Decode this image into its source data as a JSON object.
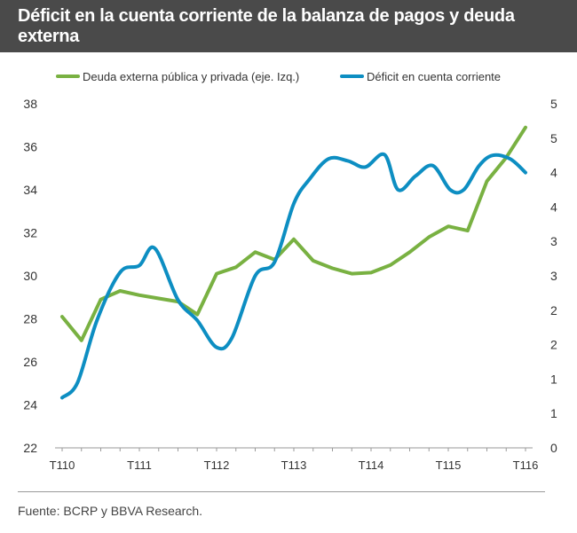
{
  "header": {
    "title": "Déficit en la cuenta corriente de la balanza de pagos y deuda externa"
  },
  "footer": {
    "source": "Fuente: BCRP y BBVA Research."
  },
  "colors": {
    "header_bg": "#4a4a4a",
    "debt": "#79b142",
    "deficit": "#0d8ec2",
    "axis": "#9a9a9a",
    "text": "#333333"
  },
  "chart_data": {
    "type": "line",
    "title": "Déficit en la cuenta corriente de la balanza de pagos y deuda externa",
    "legend_position": "top",
    "x_ticks": [
      "T110",
      "T111",
      "T112",
      "T113",
      "T114",
      "T115",
      "T116"
    ],
    "x_tick_index": [
      0,
      4,
      8,
      12,
      16,
      20,
      24
    ],
    "x_range": [
      0,
      24
    ],
    "y_left": {
      "ticks": [
        "22",
        "24",
        "26",
        "28",
        "30",
        "32",
        "34",
        "36",
        "38"
      ],
      "range": [
        22,
        38
      ]
    },
    "y_right": {
      "ticks": [
        "0",
        "1",
        "1",
        "2",
        "2",
        "3",
        "3",
        "4",
        "4",
        "5",
        "5"
      ],
      "range": [
        0,
        5
      ]
    },
    "series": [
      {
        "name": "Deuda externa pública y privada (eje. Izq.)",
        "axis": "left",
        "color": "#79b142",
        "curve": "linear",
        "x": [
          0,
          1,
          2,
          3,
          4,
          5,
          6,
          7,
          8,
          9,
          10,
          11,
          12,
          13,
          14,
          15,
          16,
          17,
          18,
          19,
          20,
          21,
          22,
          23,
          24
        ],
        "values": [
          28.1,
          27.0,
          28.9,
          29.3,
          29.1,
          28.95,
          28.8,
          28.2,
          30.1,
          30.4,
          31.1,
          30.75,
          31.7,
          30.7,
          30.35,
          30.1,
          30.15,
          30.5,
          31.1,
          31.8,
          32.3,
          32.1,
          34.4,
          35.5,
          36.9
        ]
      },
      {
        "name": "Déficit en cuenta corriente",
        "axis": "right",
        "color": "#0d8ec2",
        "curve": "smooth",
        "x": [
          0,
          0.8,
          1.8,
          3,
          4,
          4.8,
          6,
          7,
          8,
          8.8,
          10,
          11,
          12,
          12.8,
          13.8,
          14.8,
          15.7,
          16.7,
          17.4,
          18.3,
          19.2,
          20.1,
          20.8,
          21.6,
          22.3,
          23.2,
          24
        ],
        "values": [
          0.73,
          0.95,
          1.85,
          2.55,
          2.65,
          2.9,
          2.15,
          1.85,
          1.46,
          1.6,
          2.5,
          2.7,
          3.55,
          3.9,
          4.2,
          4.17,
          4.08,
          4.26,
          3.75,
          3.95,
          4.1,
          3.75,
          3.75,
          4.1,
          4.25,
          4.2,
          4.0
        ]
      }
    ]
  }
}
